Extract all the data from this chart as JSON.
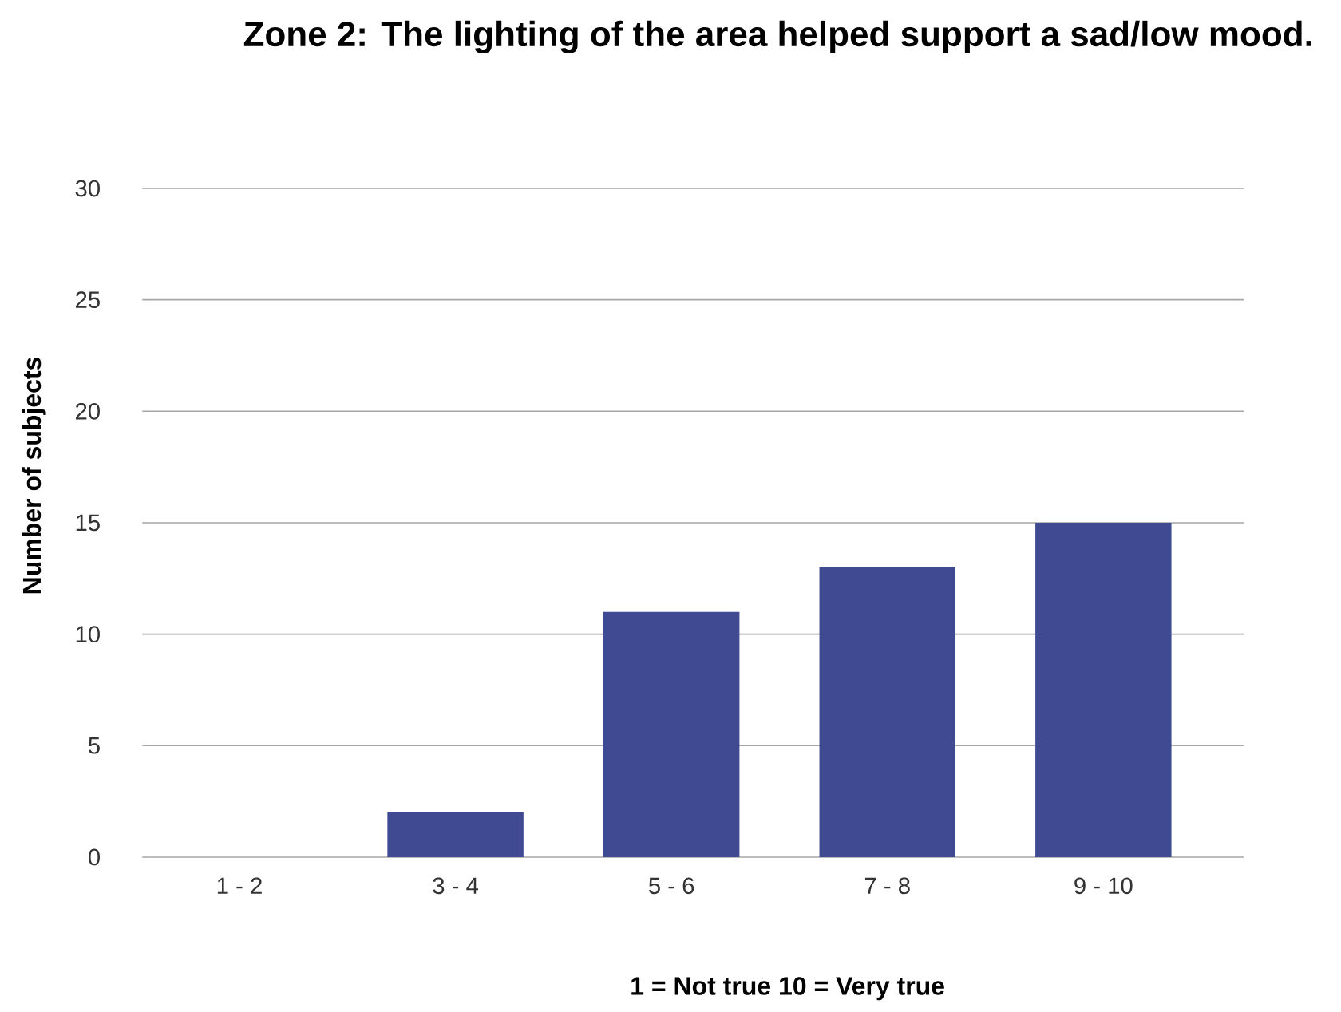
{
  "chart_data": {
    "type": "bar",
    "title": "Zone 2: The lighting of the area helped support a sad/low mood.",
    "xlabel": "1 = Not true 10 = Very true",
    "ylabel": "Number of subjects",
    "categories": [
      "1 - 2",
      "3 - 4",
      "5 - 6",
      "7 - 8",
      "9 - 10"
    ],
    "values": [
      0,
      2,
      11,
      13,
      15
    ],
    "color": "#3f4a93",
    "ylim": [
      0,
      30
    ],
    "yticks": [
      0,
      5,
      10,
      15,
      20,
      25,
      30
    ],
    "grid": "y"
  }
}
